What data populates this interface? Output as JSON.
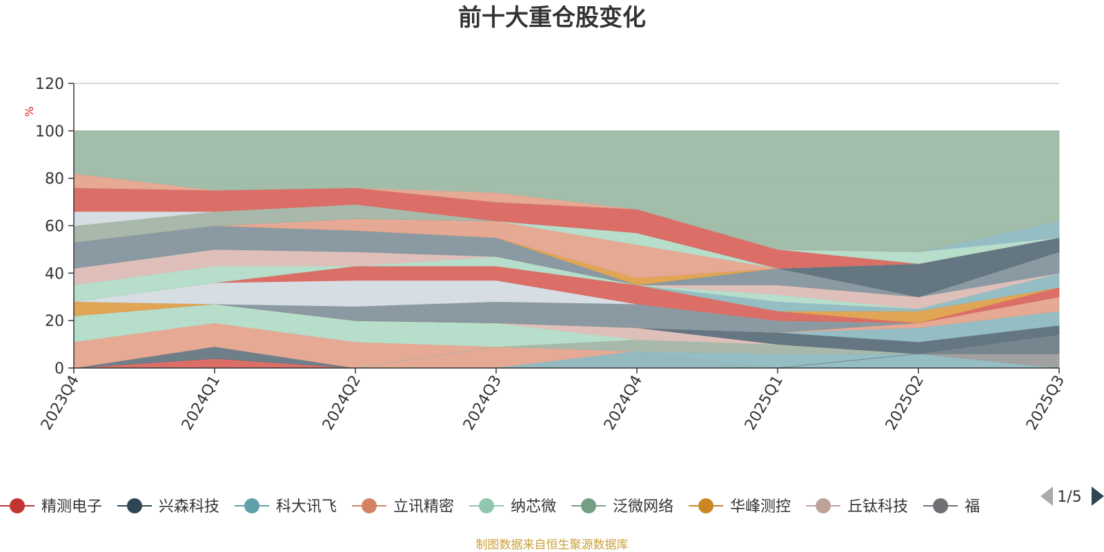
{
  "chart_data": {
    "type": "area",
    "title": "前十大重仓股变化",
    "ylabel": "%",
    "ylim": [
      0,
      120
    ],
    "yticks": [
      0,
      20,
      40,
      60,
      80,
      100,
      120
    ],
    "grid": true,
    "categories": [
      "2023Q4",
      "2024Q1",
      "2024Q2",
      "2024Q3",
      "2024Q4",
      "2025Q1",
      "2025Q2",
      "2025Q3"
    ],
    "bands": [
      {
        "color": "#8fb9c1",
        "lower": [
          0,
          0,
          0,
          0,
          7,
          6,
          6,
          0
        ],
        "upper": [
          0,
          0,
          0,
          0,
          7,
          6,
          6,
          0
        ]
      },
      {
        "color": "#d9675f",
        "lower": [
          0,
          0,
          0,
          0,
          0,
          0,
          0,
          0
        ],
        "upper": [
          0,
          4,
          0,
          0,
          0,
          0,
          0,
          0
        ]
      },
      {
        "color": "#667883",
        "lower": [
          0,
          4,
          0,
          0,
          0,
          0,
          0,
          0
        ],
        "upper": [
          0,
          9,
          0,
          0,
          0,
          0,
          0,
          0
        ]
      },
      {
        "color": "#e4a48e",
        "lower": [
          0,
          9,
          0,
          0,
          0,
          0,
          0,
          0
        ],
        "upper": [
          11,
          19,
          11,
          9,
          7,
          0,
          0,
          0
        ]
      },
      {
        "color": "#8fb9c1",
        "lower": [
          0,
          0,
          0,
          0,
          0,
          0,
          0,
          0
        ],
        "upper": [
          0,
          0,
          0,
          0,
          7,
          6,
          6,
          0
        ]
      },
      {
        "color": "#a3b5a6",
        "lower": [
          0,
          0,
          0,
          9,
          7,
          6,
          6,
          0
        ],
        "upper": [
          0,
          0,
          0,
          9,
          12,
          10,
          6,
          0
        ]
      },
      {
        "color": "#9c9c9c",
        "lower": [
          0,
          0,
          0,
          0,
          0,
          0,
          6,
          0
        ],
        "upper": [
          0,
          0,
          0,
          0,
          0,
          0,
          6,
          6
        ]
      },
      {
        "color": "#6f8088",
        "lower": [
          0,
          0,
          0,
          0,
          0,
          0,
          6,
          6
        ],
        "upper": [
          0,
          0,
          0,
          0,
          0,
          0,
          6,
          14
        ]
      },
      {
        "color": "#b3dbc8",
        "lower": [
          11,
          19,
          11,
          9,
          12,
          10,
          6,
          14
        ],
        "upper": [
          22,
          27,
          20,
          19,
          12,
          10,
          6,
          14
        ]
      },
      {
        "color": "#dcbcb6",
        "lower": [
          22,
          27,
          20,
          19,
          12,
          10,
          6,
          14
        ],
        "upper": [
          22,
          27,
          20,
          19,
          17,
          10,
          6,
          14
        ]
      },
      {
        "color": "#5c6f7b",
        "lower": [
          22,
          27,
          20,
          19,
          17,
          10,
          6,
          14
        ],
        "upper": [
          22,
          27,
          20,
          19,
          17,
          15,
          11,
          18
        ]
      },
      {
        "color": "#8fb9c1",
        "lower": [
          22,
          27,
          20,
          19,
          17,
          15,
          11,
          18
        ],
        "upper": [
          22,
          27,
          20,
          19,
          17,
          15,
          17,
          24
        ]
      },
      {
        "color": "#e4a48e",
        "lower": [
          22,
          27,
          20,
          19,
          17,
          15,
          17,
          24
        ],
        "upper": [
          22,
          27,
          20,
          19,
          17,
          15,
          19,
          30
        ]
      },
      {
        "color": "#dea04c",
        "lower": [
          22,
          27,
          20,
          19,
          17,
          15,
          19,
          30
        ],
        "upper": [
          28,
          27,
          20,
          19,
          17,
          15,
          19,
          30
        ]
      },
      {
        "color": "#85959d",
        "lower": [
          28,
          27,
          20,
          19,
          17,
          15,
          19,
          30
        ],
        "upper": [
          28,
          27,
          26,
          28,
          27,
          20,
          19,
          30
        ]
      },
      {
        "color": "#d4dbe2",
        "lower": [
          28,
          27,
          26,
          28,
          27,
          20,
          19,
          30
        ],
        "upper": [
          28,
          36,
          37,
          37,
          27,
          20,
          19,
          30
        ]
      },
      {
        "color": "#d9675f",
        "lower": [
          28,
          36,
          37,
          37,
          27,
          20,
          19,
          30
        ],
        "upper": [
          28,
          36,
          43,
          43,
          35,
          24,
          19,
          34
        ]
      },
      {
        "color": "#dea04c",
        "lower": [
          28,
          36,
          43,
          43,
          35,
          24,
          19,
          34
        ],
        "upper": [
          28,
          36,
          43,
          43,
          35,
          24,
          24,
          34
        ]
      },
      {
        "color": "#8fb9c1",
        "lower": [
          28,
          36,
          43,
          43,
          35,
          24,
          24,
          34
        ],
        "upper": [
          28,
          36,
          43,
          43,
          35,
          28,
          25,
          40
        ]
      },
      {
        "color": "#b3dbc8",
        "lower": [
          28,
          36,
          43,
          43,
          35,
          28,
          25,
          40
        ],
        "upper": [
          35,
          43,
          43,
          47,
          35,
          31,
          25,
          40
        ]
      },
      {
        "color": "#dcbcb6",
        "lower": [
          35,
          43,
          43,
          47,
          35,
          31,
          25,
          40
        ],
        "upper": [
          42,
          50,
          49,
          47,
          35,
          35,
          30,
          40
        ]
      },
      {
        "color": "#85959d",
        "lower": [
          42,
          50,
          49,
          47,
          35,
          35,
          30,
          40
        ],
        "upper": [
          53,
          60,
          58,
          55,
          35,
          42,
          30,
          49
        ]
      },
      {
        "color": "#dea04c",
        "lower": [
          53,
          60,
          58,
          55,
          35,
          42,
          30,
          49
        ],
        "upper": [
          53,
          60,
          58,
          55,
          38,
          42,
          30,
          49
        ]
      },
      {
        "color": "#e4a48e",
        "lower": [
          53,
          60,
          58,
          55,
          38,
          42,
          30,
          49
        ],
        "upper": [
          53,
          60,
          63,
          62,
          52,
          42,
          30,
          49
        ]
      },
      {
        "color": "#b3dbc8",
        "lower": [
          53,
          60,
          63,
          62,
          52,
          42,
          30,
          49
        ],
        "upper": [
          53,
          60,
          63,
          62,
          57,
          42,
          30,
          49
        ]
      },
      {
        "color": "#5c6f7b",
        "lower": [
          53,
          60,
          63,
          62,
          57,
          42,
          30,
          49
        ],
        "upper": [
          53,
          60,
          63,
          62,
          57,
          42,
          44,
          55
        ]
      },
      {
        "color": "#a3b5a6",
        "lower": [
          53,
          60,
          63,
          62,
          57,
          42,
          44,
          55
        ],
        "upper": [
          60,
          66,
          69,
          62,
          57,
          42,
          44,
          55
        ]
      },
      {
        "color": "#d4dbe2",
        "lower": [
          60,
          66,
          69,
          62,
          57,
          42,
          44,
          55
        ],
        "upper": [
          66,
          66,
          69,
          62,
          57,
          42,
          44,
          55
        ]
      },
      {
        "color": "#d9675f",
        "lower": [
          66,
          66,
          69,
          62,
          57,
          42,
          44,
          55
        ],
        "upper": [
          76,
          75,
          76,
          70,
          67,
          50,
          44,
          55
        ]
      },
      {
        "color": "#b3dbc8",
        "lower": [
          76,
          75,
          76,
          70,
          67,
          50,
          44,
          55
        ],
        "upper": [
          76,
          75,
          76,
          70,
          67,
          50,
          49,
          55
        ]
      },
      {
        "color": "#8fb9c1",
        "lower": [
          76,
          75,
          76,
          70,
          67,
          50,
          49,
          55
        ],
        "upper": [
          76,
          75,
          76,
          70,
          67,
          50,
          49,
          62
        ]
      },
      {
        "color": "#e4a48e",
        "lower": [
          76,
          75,
          76,
          70,
          67,
          50,
          49,
          62
        ],
        "upper": [
          82,
          75,
          76,
          74,
          67,
          50,
          49,
          62
        ]
      },
      {
        "color": "#9dbaa6",
        "lower": [
          82,
          75,
          76,
          74,
          67,
          50,
          49,
          62
        ],
        "upper": [
          100,
          100,
          100,
          100,
          100,
          100,
          100,
          100
        ]
      }
    ],
    "legend": [
      {
        "name": "精测电子",
        "color": "#c23531"
      },
      {
        "name": "兴森科技",
        "color": "#2f4554"
      },
      {
        "name": "科大讯飞",
        "color": "#61a0a8"
      },
      {
        "name": "立讯精密",
        "color": "#d48265"
      },
      {
        "name": "纳芯微",
        "color": "#91c7ae"
      },
      {
        "name": "泛微网络",
        "color": "#749f83"
      },
      {
        "name": "华峰测控",
        "color": "#ca8622"
      },
      {
        "name": "丘钛科技",
        "color": "#bda29a"
      },
      {
        "name": "福",
        "color": "#6e7074"
      }
    ],
    "legend_page": "1/5"
  },
  "footer": {
    "source": "制图数据来自恒生聚源数据库"
  }
}
